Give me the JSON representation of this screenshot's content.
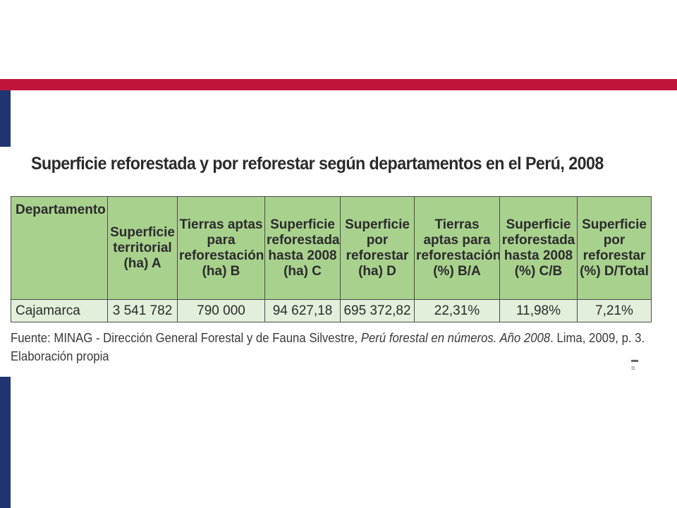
{
  "title": "Superficie reforestada y por reforestar según departamentos en el Perú, 2008",
  "table": {
    "headers": [
      "Departamento",
      "Superficie territorial (ha) A",
      "Tierras aptas para reforestación (ha) B",
      "Superficie reforestada hasta 2008 (ha) C",
      "Superficie por reforestar (ha) D",
      "Tierras aptas para reforestación (%) B/A",
      "Superficie reforestada hasta 2008 (%) C/B",
      "Superficie por reforestar (%) D/Total"
    ],
    "rows": [
      [
        "Cajamarca",
        "3 541 782",
        "790 000",
        "94 627,18",
        "695 372,82",
        "22,31%",
        "11,98%",
        "7,21%"
      ]
    ]
  },
  "source": {
    "prefix": "Fuente: MINAG - Dirección General Forestal y de Fauna Silvestre, ",
    "italic": "Perú forestal en números. Año 2008",
    "suffix": ". Lima, 2009, p. 3.",
    "line2": "Elaboración propia"
  },
  "slide_mark": "≡",
  "colors": {
    "accent_red": "#c0143c",
    "accent_blue": "#1f3470",
    "header_green": "#a9d18e",
    "row_green": "#e2efda"
  }
}
